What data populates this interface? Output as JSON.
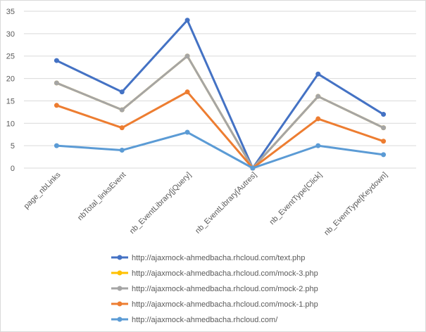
{
  "chart_data": {
    "type": "line",
    "title": "",
    "xlabel": "",
    "ylabel": "",
    "ylim": [
      0,
      35
    ],
    "yticks": [
      0,
      5,
      10,
      15,
      20,
      25,
      30,
      35
    ],
    "grid": true,
    "legend_position": "bottom",
    "categories": [
      "page_nbLinks",
      "nbTotal_linksEvent",
      "nb_EventLibrary[jQuery]",
      "nb_EventLibrary[Autres]",
      "nb_EventType[Click]",
      "nb_EventType[Keydown]"
    ],
    "series": [
      {
        "name": "http://ajaxmock-ahmedbacha.rhcloud.com/text.php",
        "color": "#4472c4",
        "values": [
          24,
          17,
          33,
          0,
          21,
          12
        ]
      },
      {
        "name": "http://ajaxmock-ahmedbacha.rhcloud.com/mock-3.php",
        "color": "#ffc000",
        "values": [
          19,
          13,
          25,
          0,
          16,
          9
        ]
      },
      {
        "name": "http://ajaxmock-ahmedbacha.rhcloud.com/mock-2.php",
        "color": "#a5a5a5",
        "values": [
          19,
          13,
          25,
          0,
          16,
          9
        ]
      },
      {
        "name": "http://ajaxmock-ahmedbacha.rhcloud.com/mock-1.php",
        "color": "#ed7d31",
        "values": [
          14,
          9,
          17,
          0,
          11,
          6
        ]
      },
      {
        "name": "http://ajaxmock-ahmedbacha.rhcloud.com/",
        "color": "#5b9bd5",
        "values": [
          5,
          4,
          8,
          0,
          5,
          3
        ]
      }
    ]
  }
}
